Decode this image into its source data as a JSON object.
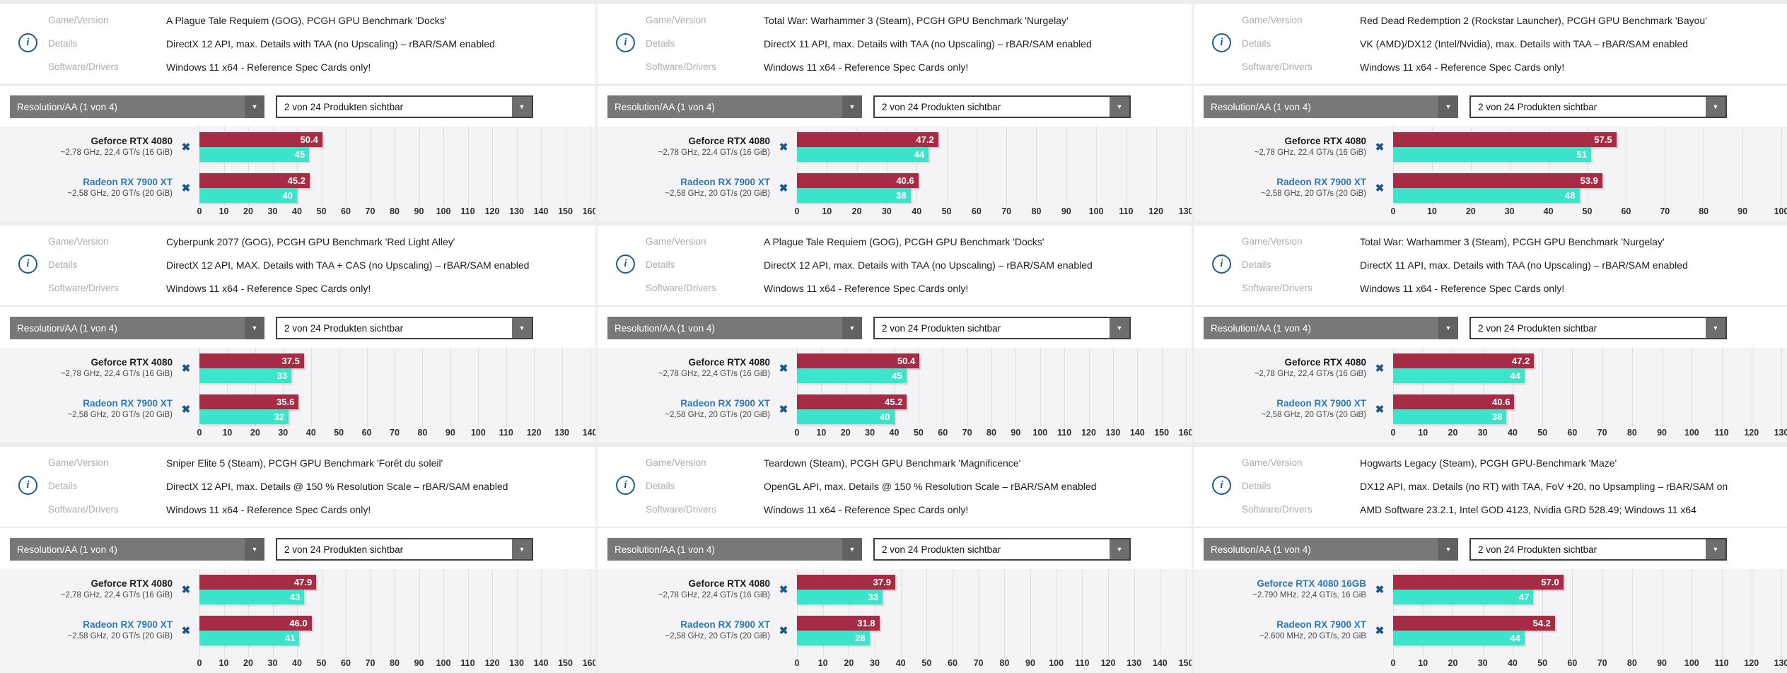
{
  "shared": {
    "info_labels": {
      "game": "Game/Version",
      "details": "Details",
      "drivers": "Software/Drivers"
    },
    "resolution_dropdown": "Resolution/AA (1 von 4)",
    "products_dropdown": "2 von 24 Produkten sichtbar",
    "info_icon_glyph": "i",
    "close_icon_glyph": "✖",
    "dropdown_arrow_glyph": "▼"
  },
  "colors": {
    "avg_fps_bar": "#a62b45",
    "p1_fps_bar": "#3be4ca",
    "link_blue": "#2e78b5",
    "close_icon_blue": "#1b5789",
    "chart_background": "#f4f4f6"
  },
  "panels": [
    {
      "game": "A Plague Tale Requiem (GOG), PCGH GPU Benchmark 'Docks'",
      "details": "DirectX 12 API, max. Details with TAA (no Upscaling) – rBAR/SAM enabled",
      "drivers": "Windows 11 x64 - Reference Spec Cards only!",
      "axis_max": 160,
      "gpus": [
        {
          "name": "Geforce RTX 4080",
          "spec": "~2,78 GHz, 22,4 GT/s (16 GiB)",
          "link": false,
          "avg": 50.4,
          "avg_label": "50.4",
          "p1": 45,
          "p1_label": "45"
        },
        {
          "name": "Radeon RX 7900 XT",
          "spec": "~2,58 GHz, 20 GT/s (20 GiB)",
          "link": true,
          "avg": 45.2,
          "avg_label": "45.2",
          "p1": 40,
          "p1_label": "40"
        }
      ]
    },
    {
      "game": "Total War: Warhammer 3 (Steam), PCGH GPU Benchmark 'Nurgelay'",
      "details": "DirectX 11 API, max. Details with TAA (no Upscaling) – rBAR/SAM enabled",
      "drivers": "Windows 11 x64 - Reference Spec Cards only!",
      "axis_max": 130,
      "gpus": [
        {
          "name": "Geforce RTX 4080",
          "spec": "~2,78 GHz, 22,4 GT/s (16 GiB)",
          "link": false,
          "avg": 47.2,
          "avg_label": "47.2",
          "p1": 44,
          "p1_label": "44"
        },
        {
          "name": "Radeon RX 7900 XT",
          "spec": "~2,58 GHz, 20 GT/s (20 GiB)",
          "link": true,
          "avg": 40.6,
          "avg_label": "40.6",
          "p1": 38,
          "p1_label": "38"
        }
      ]
    },
    {
      "game": "Red Dead Redemption 2 (Rockstar Launcher), PCGH GPU Benchmark 'Bayou'",
      "details": "VK (AMD)/DX12 (Intel/Nvidia), max. Details with TAA – rBAR/SAM enabled",
      "drivers": "Windows 11 x64 - Reference Spec Cards only!",
      "axis_max": 100,
      "gpus": [
        {
          "name": "Geforce RTX 4080",
          "spec": "~2,78 GHz, 22,4 GT/s (16 GiB)",
          "link": false,
          "avg": 57.5,
          "avg_label": "57.5",
          "p1": 51,
          "p1_label": "51"
        },
        {
          "name": "Radeon RX 7900 XT",
          "spec": "~2,58 GHz, 20 GT/s (20 GiB)",
          "link": true,
          "avg": 53.9,
          "avg_label": "53.9",
          "p1": 48,
          "p1_label": "48"
        }
      ]
    },
    {
      "game": "Cyberpunk 2077 (GOG), PCGH GPU Benchmark 'Red Light Alley'",
      "details": "DirectX 12 API, MAX. Details with TAA + CAS (no Upscaling) – rBAR/SAM enabled",
      "drivers": "Windows 11 x64 - Reference Spec Cards only!",
      "axis_max": 140,
      "gpus": [
        {
          "name": "Geforce RTX 4080",
          "spec": "~2,78 GHz, 22,4 GT/s (16 GiB)",
          "link": false,
          "avg": 37.5,
          "avg_label": "37.5",
          "p1": 33,
          "p1_label": "33"
        },
        {
          "name": "Radeon RX 7900 XT",
          "spec": "~2,58 GHz, 20 GT/s (20 GiB)",
          "link": true,
          "avg": 35.6,
          "avg_label": "35.6",
          "p1": 32,
          "p1_label": "32"
        }
      ]
    },
    {
      "game": "A Plague Tale Requiem (GOG), PCGH GPU Benchmark 'Docks'",
      "details": "DirectX 12 API, max. Details with TAA (no Upscaling) – rBAR/SAM enabled",
      "drivers": "Windows 11 x64 - Reference Spec Cards only!",
      "axis_max": 160,
      "gpus": [
        {
          "name": "Geforce RTX 4080",
          "spec": "~2,78 GHz, 22,4 GT/s (16 GiB)",
          "link": false,
          "avg": 50.4,
          "avg_label": "50.4",
          "p1": 45,
          "p1_label": "45"
        },
        {
          "name": "Radeon RX 7900 XT",
          "spec": "~2,58 GHz, 20 GT/s (20 GiB)",
          "link": true,
          "avg": 45.2,
          "avg_label": "45.2",
          "p1": 40,
          "p1_label": "40"
        }
      ]
    },
    {
      "game": "Total War: Warhammer 3 (Steam), PCGH GPU Benchmark 'Nurgelay'",
      "details": "DirectX 11 API, max. Details with TAA (no Upscaling) – rBAR/SAM enabled",
      "drivers": "Windows 11 x64 - Reference Spec Cards only!",
      "axis_max": 130,
      "gpus": [
        {
          "name": "Geforce RTX 4080",
          "spec": "~2,78 GHz, 22,4 GT/s (16 GiB)",
          "link": false,
          "avg": 47.2,
          "avg_label": "47.2",
          "p1": 44,
          "p1_label": "44"
        },
        {
          "name": "Radeon RX 7900 XT",
          "spec": "~2,58 GHz, 20 GT/s (20 GiB)",
          "link": true,
          "avg": 40.6,
          "avg_label": "40.6",
          "p1": 38,
          "p1_label": "38"
        }
      ]
    },
    {
      "game": "Sniper Elite 5 (Steam), PCGH GPU Benchmark 'Forêt du soleil'",
      "details": "DirectX 12 API, max. Details @ 150 % Resolution Scale – rBAR/SAM enabled",
      "drivers": "Windows 11 x64 - Reference Spec Cards only!",
      "axis_max": 160,
      "gpus": [
        {
          "name": "Geforce RTX 4080",
          "spec": "~2,78 GHz, 22,4 GT/s (16 GiB)",
          "link": false,
          "avg": 47.9,
          "avg_label": "47.9",
          "p1": 43,
          "p1_label": "43"
        },
        {
          "name": "Radeon RX 7900 XT",
          "spec": "~2,58 GHz, 20 GT/s (20 GiB)",
          "link": true,
          "avg": 46.0,
          "avg_label": "46.0",
          "p1": 41,
          "p1_label": "41"
        }
      ]
    },
    {
      "game": "Teardown (Steam), PCGH GPU Benchmark 'Magnificence'",
      "details": "OpenGL API, max. Details @ 150 % Resolution Scale – rBAR/SAM enabled",
      "drivers": "Windows 11 x64 - Reference Spec Cards only!",
      "axis_max": 150,
      "gpus": [
        {
          "name": "Geforce RTX 4080",
          "spec": "~2,78 GHz, 22,4 GT/s (16 GiB)",
          "link": false,
          "avg": 37.9,
          "avg_label": "37.9",
          "p1": 33,
          "p1_label": "33"
        },
        {
          "name": "Radeon RX 7900 XT",
          "spec": "~2,58 GHz, 20 GT/s (20 GiB)",
          "link": true,
          "avg": 31.8,
          "avg_label": "31.8",
          "p1": 28,
          "p1_label": "28"
        }
      ]
    },
    {
      "game": "Hogwarts Legacy (Steam), PCGH GPU-Benchmark 'Maze'",
      "details": "DX12 API, max. Details (no RT) with TAA, FoV +20, no Upsampling – rBAR/SAM on",
      "drivers": "AMD Software 23.2.1, Intel GOD 4123, Nvidia GRD 528.49; Windows 11 x64",
      "axis_max": 130,
      "gpus": [
        {
          "name": "Geforce RTX 4080 16GB",
          "spec": "~2.790 MHz, 22,4 GT/s, 16 GiB",
          "link": true,
          "avg": 57.0,
          "avg_label": "57.0",
          "p1": 47,
          "p1_label": "47"
        },
        {
          "name": "Radeon RX 7900 XT",
          "spec": "~2.600 MHz, 20 GT/s, 20 GiB",
          "link": true,
          "avg": 54.2,
          "avg_label": "54.2",
          "p1": 44,
          "p1_label": "44"
        }
      ]
    }
  ],
  "chart_data": [
    {
      "type": "bar",
      "orientation": "horizontal",
      "title": "A Plague Tale Requiem (GOG), PCGH GPU Benchmark 'Docks'",
      "categories": [
        "Geforce RTX 4080",
        "Radeon RX 7900 XT"
      ],
      "series": [
        {
          "name": "fps (red bar)",
          "values": [
            50.4,
            45.2
          ]
        },
        {
          "name": "fps (teal bar)",
          "values": [
            45,
            40
          ]
        }
      ],
      "xlim": [
        0,
        160
      ],
      "tick_step": 10,
      "grid": true
    },
    {
      "type": "bar",
      "orientation": "horizontal",
      "title": "Total War: Warhammer 3 (Steam), PCGH GPU Benchmark 'Nurgelay'",
      "categories": [
        "Geforce RTX 4080",
        "Radeon RX 7900 XT"
      ],
      "series": [
        {
          "name": "fps (red bar)",
          "values": [
            47.2,
            40.6
          ]
        },
        {
          "name": "fps (teal bar)",
          "values": [
            44,
            38
          ]
        }
      ],
      "xlim": [
        0,
        130
      ],
      "tick_step": 10,
      "grid": true
    },
    {
      "type": "bar",
      "orientation": "horizontal",
      "title": "Red Dead Redemption 2 (Rockstar Launcher), PCGH GPU Benchmark 'Bayou'",
      "categories": [
        "Geforce RTX 4080",
        "Radeon RX 7900 XT"
      ],
      "series": [
        {
          "name": "fps (red bar)",
          "values": [
            57.5,
            53.9
          ]
        },
        {
          "name": "fps (teal bar)",
          "values": [
            51,
            48
          ]
        }
      ],
      "xlim": [
        0,
        100
      ],
      "tick_step": 10,
      "grid": true
    },
    {
      "type": "bar",
      "orientation": "horizontal",
      "title": "Cyberpunk 2077 (GOG), PCGH GPU Benchmark 'Red Light Alley'",
      "categories": [
        "Geforce RTX 4080",
        "Radeon RX 7900 XT"
      ],
      "series": [
        {
          "name": "fps (red bar)",
          "values": [
            37.5,
            35.6
          ]
        },
        {
          "name": "fps (teal bar)",
          "values": [
            33,
            32
          ]
        }
      ],
      "xlim": [
        0,
        140
      ],
      "tick_step": 10,
      "grid": true
    },
    {
      "type": "bar",
      "orientation": "horizontal",
      "title": "A Plague Tale Requiem (GOG), PCGH GPU Benchmark 'Docks'",
      "categories": [
        "Geforce RTX 4080",
        "Radeon RX 7900 XT"
      ],
      "series": [
        {
          "name": "fps (red bar)",
          "values": [
            50.4,
            45.2
          ]
        },
        {
          "name": "fps (teal bar)",
          "values": [
            45,
            40
          ]
        }
      ],
      "xlim": [
        0,
        160
      ],
      "tick_step": 10,
      "grid": true
    },
    {
      "type": "bar",
      "orientation": "horizontal",
      "title": "Total War: Warhammer 3 (Steam), PCGH GPU Benchmark 'Nurgelay'",
      "categories": [
        "Geforce RTX 4080",
        "Radeon RX 7900 XT"
      ],
      "series": [
        {
          "name": "fps (red bar)",
          "values": [
            47.2,
            40.6
          ]
        },
        {
          "name": "fps (teal bar)",
          "values": [
            44,
            38
          ]
        }
      ],
      "xlim": [
        0,
        130
      ],
      "tick_step": 10,
      "grid": true
    },
    {
      "type": "bar",
      "orientation": "horizontal",
      "title": "Sniper Elite 5 (Steam), PCGH GPU Benchmark 'Forêt du soleil'",
      "categories": [
        "Geforce RTX 4080",
        "Radeon RX 7900 XT"
      ],
      "series": [
        {
          "name": "fps (red bar)",
          "values": [
            47.9,
            46.0
          ]
        },
        {
          "name": "fps (teal bar)",
          "values": [
            43,
            41
          ]
        }
      ],
      "xlim": [
        0,
        160
      ],
      "tick_step": 10,
      "grid": true
    },
    {
      "type": "bar",
      "orientation": "horizontal",
      "title": "Teardown (Steam), PCGH GPU Benchmark 'Magnificence'",
      "categories": [
        "Geforce RTX 4080",
        "Radeon RX 7900 XT"
      ],
      "series": [
        {
          "name": "fps (red bar)",
          "values": [
            37.9,
            31.8
          ]
        },
        {
          "name": "fps (teal bar)",
          "values": [
            33,
            28
          ]
        }
      ],
      "xlim": [
        0,
        150
      ],
      "tick_step": 10,
      "grid": true
    },
    {
      "type": "bar",
      "orientation": "horizontal",
      "title": "Hogwarts Legacy (Steam), PCGH GPU-Benchmark 'Maze'",
      "categories": [
        "Geforce RTX 4080 16GB",
        "Radeon RX 7900 XT"
      ],
      "series": [
        {
          "name": "fps (red bar)",
          "values": [
            57.0,
            54.2
          ]
        },
        {
          "name": "fps (teal bar)",
          "values": [
            47,
            44
          ]
        }
      ],
      "xlim": [
        0,
        130
      ],
      "tick_step": 10,
      "grid": true
    }
  ]
}
